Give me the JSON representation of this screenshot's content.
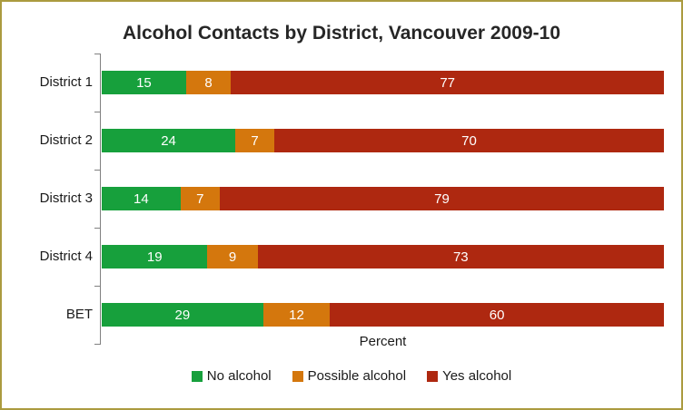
{
  "title": "Alcohol Contacts by District, Vancouver 2009-10",
  "chart_data": {
    "type": "bar",
    "orientation": "horizontal-stacked",
    "title": "Alcohol Contacts by District, Vancouver 2009-10",
    "categories": [
      "District 1",
      "District 2",
      "District 3",
      "District 4",
      "BET"
    ],
    "series": [
      {
        "name": "No alcohol",
        "color": "#17A03C",
        "values": [
          15,
          24,
          14,
          19,
          29
        ]
      },
      {
        "name": "Possible alcohol",
        "color": "#D4770D",
        "values": [
          8,
          7,
          7,
          9,
          12
        ]
      },
      {
        "name": "Yes alcohol",
        "color": "#AE2810",
        "values": [
          77,
          70,
          79,
          73,
          60
        ]
      }
    ],
    "xlabel": "Percent",
    "value_labels_shown": true,
    "legend_position": "bottom",
    "grid": "off",
    "axis_color": "#808080",
    "frame_border_color": "#AB9B3F",
    "bar_value_text_color": "#ffffff"
  }
}
